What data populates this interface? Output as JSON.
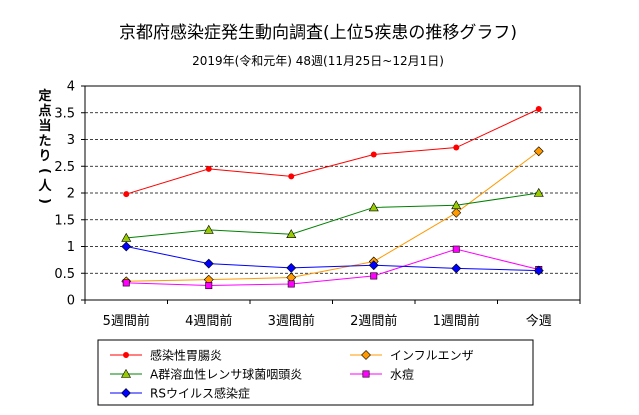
{
  "chart_data": {
    "type": "line",
    "title": "京都府感染症発生動向調査(上位5疾患の推移グラフ)",
    "subtitle": "2019年(令和元年) 48週(11月25日~12月1日)",
    "ylabel": "定点当たり(人)",
    "xlabel": "",
    "categories": [
      "5週間前",
      "4週間前",
      "3週間前",
      "2週間前",
      "1週間前",
      "今週"
    ],
    "y_ticks": [
      "0",
      "0.5",
      "1",
      "1.5",
      "2",
      "2.5",
      "3",
      "3.5",
      "4"
    ],
    "ylim": [
      0,
      4
    ],
    "grid": "horizontal dashed",
    "legend_position": "bottom",
    "series": [
      {
        "name": "感染性胃腸炎",
        "values": [
          1.98,
          2.45,
          2.31,
          2.72,
          2.85,
          3.57
        ],
        "color": "#ff0000",
        "marker": "circle"
      },
      {
        "name": "インフルエンザ",
        "values": [
          0.35,
          0.38,
          0.42,
          0.72,
          1.63,
          2.78
        ],
        "color": "#ff9900",
        "marker": "diamond"
      },
      {
        "name": "A群溶血性レンサ球菌咽頭炎",
        "values": [
          1.16,
          1.31,
          1.23,
          1.73,
          1.77,
          2.0
        ],
        "color": "#008000",
        "marker": "triangle"
      },
      {
        "name": "水痘",
        "values": [
          0.32,
          0.27,
          0.3,
          0.45,
          0.95,
          0.57
        ],
        "color": "#ff00ff",
        "marker": "square"
      },
      {
        "name": "RSウイルス感染症",
        "values": [
          1.0,
          0.68,
          0.6,
          0.65,
          0.59,
          0.55
        ],
        "color": "#0000ff",
        "marker": "diamond"
      }
    ]
  }
}
